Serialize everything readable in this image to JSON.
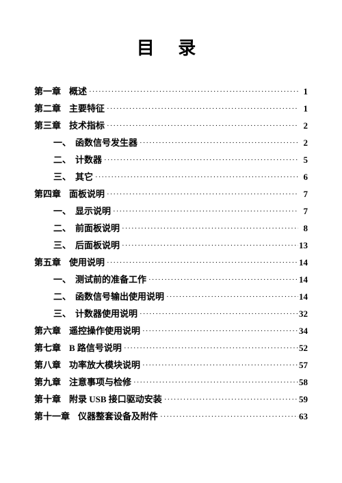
{
  "page": {
    "background_color": "#ffffff",
    "text_color": "#000000",
    "body_fontsize": 13,
    "title_fontsize": 26
  },
  "toc": {
    "title": "目  录",
    "entries": [
      {
        "level": 0,
        "chapter": "第一章",
        "title": "概述",
        "page": "1"
      },
      {
        "level": 0,
        "chapter": "第二章",
        "title": "主要特征",
        "page": "1"
      },
      {
        "level": 0,
        "chapter": "第三章",
        "title": "技术指标",
        "page": "2"
      },
      {
        "level": 1,
        "subnum": "一、",
        "title": "函数信号发生器",
        "page": "2"
      },
      {
        "level": 1,
        "subnum": "二、",
        "title": "计数器",
        "page": "5"
      },
      {
        "level": 1,
        "subnum": "三、",
        "title": "其它",
        "page": "6"
      },
      {
        "level": 0,
        "chapter": "第四章",
        "title": "面板说明",
        "page": "7"
      },
      {
        "level": 1,
        "subnum": "一、",
        "title": "显示说明",
        "page": "7"
      },
      {
        "level": 1,
        "subnum": "二、",
        "title": "前面板说明",
        "page": "8"
      },
      {
        "level": 1,
        "subnum": "三、",
        "title": "后面板说明",
        "page": "13"
      },
      {
        "level": 0,
        "chapter": "第五章",
        "title": "使用说明",
        "page": "14"
      },
      {
        "level": 1,
        "subnum": "一、",
        "title": "测试前的准备工作",
        "page": "14"
      },
      {
        "level": 1,
        "subnum": "二、",
        "title": "函数信号输出使用说明",
        "page": "14"
      },
      {
        "level": 1,
        "subnum": "三、",
        "title": "计数器使用说明",
        "page": "32"
      },
      {
        "level": 0,
        "chapter": "第六章",
        "title": "遥控操作使用说明",
        "page": "34"
      },
      {
        "level": 0,
        "chapter": "第七章",
        "title": "B 路信号说明",
        "page": "52"
      },
      {
        "level": 0,
        "chapter": "第八章",
        "title": "功率放大模块说明",
        "page": "57"
      },
      {
        "level": 0,
        "chapter": "第九章",
        "title": "注意事项与检修",
        "page": "58"
      },
      {
        "level": 0,
        "chapter": "第十章",
        "title": "附录 USB 接口驱动安装",
        "page": "59"
      },
      {
        "level": 0,
        "chapter": "第十一章",
        "title": "仪器整套设备及附件",
        "page": "63"
      }
    ]
  }
}
